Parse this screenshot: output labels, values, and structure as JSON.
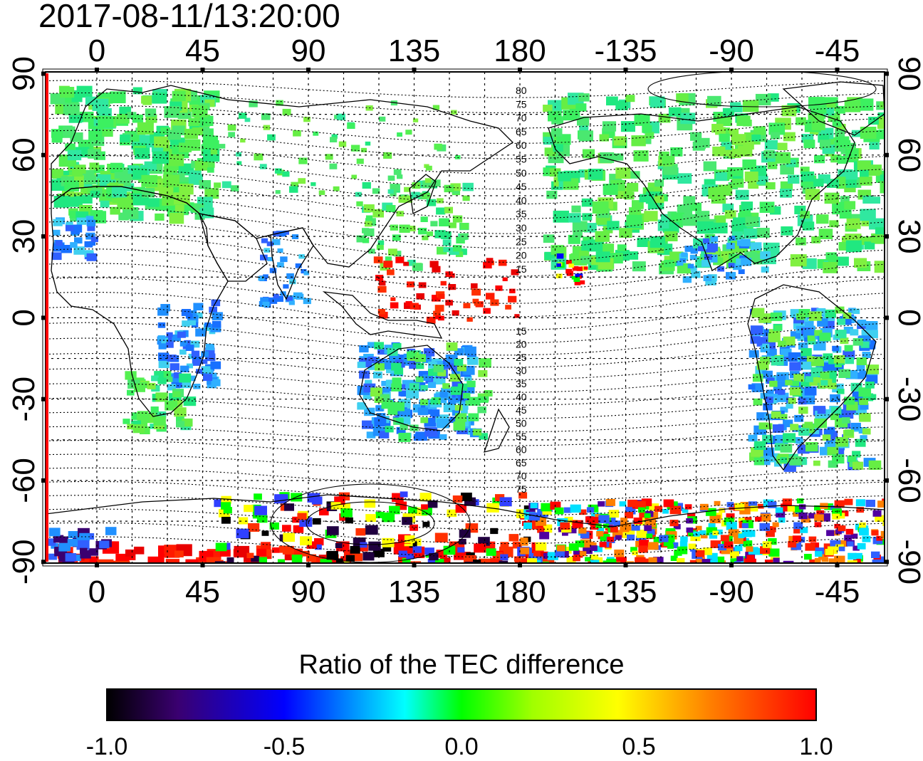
{
  "title": "2017-08-11/13:20:00",
  "colorbar": {
    "title": "Ratio of the TEC difference",
    "tick_labels": [
      "-1.0",
      "-0.5",
      "0.0",
      "0.5",
      "1.0"
    ],
    "range": [
      -1.0,
      1.0
    ],
    "stops": [
      "#000000",
      "#3a0070",
      "#0000ff",
      "#00ffff",
      "#00ff00",
      "#ffff00",
      "#ff8000",
      "#ff0000"
    ]
  },
  "map": {
    "lon_tick_labels": [
      "0",
      "45",
      "90",
      "135",
      "180",
      "-135",
      "-90",
      "-45"
    ],
    "lat_tick_labels": [
      "90",
      "60",
      "30",
      "0",
      "-30",
      "-60",
      "-90"
    ],
    "contour_labels_north": [
      "80",
      "75",
      "70",
      "65",
      "60",
      "55",
      "50",
      "45",
      "40",
      "35",
      "30",
      "25",
      "20",
      "15"
    ],
    "contour_labels_south": [
      "15",
      "20",
      "25",
      "30",
      "35",
      "40",
      "45",
      "50",
      "55",
      "60",
      "65",
      "70",
      "75"
    ],
    "colors": {
      "land_outline": "#000000",
      "grid": "#000000",
      "frame": "#000000",
      "left_edge": "#ff0000"
    }
  }
}
